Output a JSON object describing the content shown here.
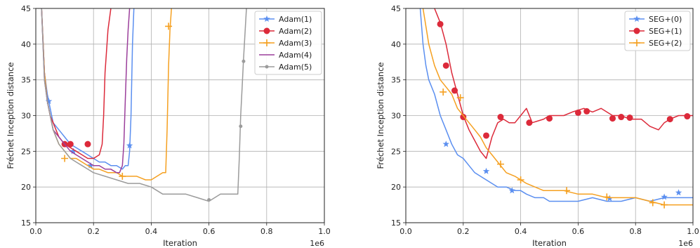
{
  "chart_data": [
    {
      "type": "line",
      "xlabel": "Iteration",
      "ylabel": "Fréchet Inception distance",
      "x_multiplier_label": "1e6",
      "xlim": [
        0.0,
        1.0
      ],
      "ylim": [
        15,
        45
      ],
      "xticks": [
        "0.0",
        "0.2",
        "0.4",
        "0.6",
        "0.8",
        "1.0"
      ],
      "yticks": [
        "15",
        "20",
        "25",
        "30",
        "35",
        "40",
        "45"
      ],
      "grid": true,
      "legend_position": "top-right",
      "series": [
        {
          "name": "Adam(1)",
          "color": "#5b8ff0",
          "marker": "star",
          "x": [
            0.02,
            0.03,
            0.04,
            0.05,
            0.06,
            0.08,
            0.1,
            0.12,
            0.14,
            0.16,
            0.18,
            0.2,
            0.22,
            0.24,
            0.26,
            0.28,
            0.3,
            0.31,
            0.32,
            0.325,
            0.33,
            0.335,
            0.34
          ],
          "y": [
            45,
            36,
            33,
            31,
            29,
            28,
            27,
            26,
            25.5,
            25,
            24.5,
            24,
            23.5,
            23.5,
            23,
            23,
            22.5,
            23,
            23,
            25,
            30,
            40,
            45
          ],
          "markers_x": [
            0.045,
            0.13,
            0.19,
            0.325
          ],
          "markers_y": [
            32,
            25,
            23,
            25.8
          ]
        },
        {
          "name": "Adam(2)",
          "color": "#dc2a3a",
          "marker": "circle",
          "x": [
            0.02,
            0.03,
            0.04,
            0.05,
            0.06,
            0.08,
            0.1,
            0.12,
            0.14,
            0.16,
            0.18,
            0.2,
            0.22,
            0.23,
            0.235,
            0.24,
            0.25,
            0.26
          ],
          "y": [
            45,
            36,
            32,
            30,
            29,
            27,
            26,
            25.5,
            25,
            24.5,
            24,
            24,
            24.5,
            26,
            30,
            36,
            42,
            45
          ],
          "markers_x": [
            0.1,
            0.12,
            0.18
          ],
          "markers_y": [
            26,
            26,
            26
          ]
        },
        {
          "name": "Adam(3)",
          "color": "#f5a020",
          "marker": "plus",
          "x": [
            0.02,
            0.03,
            0.04,
            0.05,
            0.06,
            0.08,
            0.1,
            0.12,
            0.14,
            0.16,
            0.18,
            0.2,
            0.22,
            0.25,
            0.28,
            0.3,
            0.32,
            0.35,
            0.38,
            0.4,
            0.42,
            0.44,
            0.45,
            0.455,
            0.46,
            0.465,
            0.47
          ],
          "y": [
            45,
            36,
            32,
            30,
            28,
            26,
            25,
            24,
            24,
            23.5,
            23,
            22.5,
            22.5,
            22,
            22,
            21.5,
            21.5,
            21.5,
            21,
            21,
            21.5,
            22,
            22,
            28,
            37,
            42,
            45
          ],
          "markers_x": [
            0.1,
            0.3,
            0.46
          ],
          "markers_y": [
            24,
            21.5,
            42.5
          ]
        },
        {
          "name": "Adam(4)",
          "color": "#9b3f9b",
          "marker": "none",
          "x": [
            0.02,
            0.03,
            0.04,
            0.05,
            0.06,
            0.08,
            0.1,
            0.12,
            0.14,
            0.16,
            0.18,
            0.2,
            0.22,
            0.24,
            0.26,
            0.28,
            0.29,
            0.3,
            0.305,
            0.31,
            0.315,
            0.32,
            0.325
          ],
          "y": [
            45,
            35,
            32,
            30,
            28,
            27,
            26,
            25,
            24.5,
            24,
            23.5,
            23,
            23,
            22.5,
            22.5,
            22,
            22,
            23,
            26,
            32,
            38,
            42,
            45
          ],
          "markers_x": [],
          "markers_y": []
        },
        {
          "name": "Adam(5)",
          "color": "#9b9b9b",
          "marker": "dot",
          "x": [
            0.02,
            0.03,
            0.04,
            0.05,
            0.06,
            0.08,
            0.1,
            0.12,
            0.14,
            0.16,
            0.18,
            0.2,
            0.24,
            0.28,
            0.32,
            0.36,
            0.4,
            0.44,
            0.48,
            0.52,
            0.56,
            0.6,
            0.64,
            0.68,
            0.7,
            0.705,
            0.71,
            0.715,
            0.72,
            0.73
          ],
          "y": [
            45,
            35,
            32,
            30,
            28,
            26,
            25,
            24,
            23.5,
            23,
            22.5,
            22,
            21.5,
            21,
            20.5,
            20.5,
            20,
            19,
            19,
            19,
            18.5,
            18,
            19,
            19,
            19,
            24,
            30,
            34,
            38,
            45
          ],
          "markers_x": [
            0.6,
            0.71,
            0.72
          ],
          "markers_y": [
            18.2,
            28.5,
            37.6
          ]
        }
      ]
    },
    {
      "type": "line",
      "xlabel": "Iteration",
      "ylabel": "Fréchet Inception distance",
      "x_multiplier_label": "1e6",
      "xlim": [
        0.0,
        1.0
      ],
      "ylim": [
        15,
        45
      ],
      "xticks": [
        "0.0",
        "0.2",
        "0.4",
        "0.6",
        "0.8",
        "1.0"
      ],
      "yticks": [
        "15",
        "20",
        "25",
        "30",
        "35",
        "40",
        "45"
      ],
      "grid": true,
      "legend_position": "top-right",
      "series": [
        {
          "name": "SEG+(0)",
          "color": "#5b8ff0",
          "marker": "star",
          "x": [
            0.05,
            0.06,
            0.07,
            0.08,
            0.1,
            0.12,
            0.14,
            0.16,
            0.18,
            0.2,
            0.22,
            0.24,
            0.26,
            0.28,
            0.3,
            0.32,
            0.35,
            0.38,
            0.4,
            0.42,
            0.45,
            0.48,
            0.5,
            0.55,
            0.6,
            0.65,
            0.7,
            0.75,
            0.8,
            0.85,
            0.9,
            0.95,
            1.0
          ],
          "y": [
            45,
            40,
            37,
            35,
            33,
            30,
            28,
            26,
            24.5,
            24,
            23,
            22,
            21.5,
            21,
            20.5,
            20,
            20,
            19.5,
            19.5,
            19,
            18.5,
            18.5,
            18,
            18,
            18,
            18.5,
            18,
            18,
            18.5,
            18,
            18.5,
            18.5,
            18.5
          ],
          "markers_x": [
            0.14,
            0.28,
            0.37,
            0.71,
            0.9,
            0.95
          ],
          "markers_y": [
            26,
            22.2,
            19.5,
            18.4,
            18.6,
            19.2
          ]
        },
        {
          "name": "SEG+(1)",
          "color": "#dc2a3a",
          "marker": "circle",
          "x": [
            0.1,
            0.12,
            0.14,
            0.16,
            0.18,
            0.2,
            0.22,
            0.24,
            0.26,
            0.28,
            0.3,
            0.32,
            0.34,
            0.36,
            0.38,
            0.4,
            0.42,
            0.44,
            0.48,
            0.5,
            0.55,
            0.58,
            0.62,
            0.65,
            0.68,
            0.7,
            0.72,
            0.75,
            0.78,
            0.8,
            0.82,
            0.85,
            0.88,
            0.9,
            0.92,
            0.95,
            0.98,
            1.0
          ],
          "y": [
            45,
            43,
            40,
            36,
            33,
            30,
            28,
            26.5,
            25,
            24,
            27,
            29,
            29.5,
            29,
            29,
            30,
            31,
            29,
            29.5,
            30,
            30,
            30.5,
            31,
            30.5,
            31,
            30.5,
            30,
            30,
            29.5,
            29.5,
            29.5,
            28.5,
            28,
            29,
            29.5,
            30,
            30,
            30
          ],
          "markers_x": [
            0.12,
            0.14,
            0.17,
            0.2,
            0.28,
            0.33,
            0.43,
            0.5,
            0.6,
            0.63,
            0.72,
            0.75,
            0.78,
            0.92,
            0.98
          ],
          "markers_y": [
            42.8,
            37,
            33.5,
            29.8,
            27.2,
            29.8,
            29,
            29.6,
            30.4,
            30.6,
            29.6,
            29.8,
            29.7,
            29.5,
            29.9
          ]
        },
        {
          "name": "SEG+(2)",
          "color": "#f5a020",
          "marker": "plus",
          "x": [
            0.06,
            0.08,
            0.1,
            0.12,
            0.14,
            0.16,
            0.18,
            0.2,
            0.22,
            0.24,
            0.26,
            0.28,
            0.3,
            0.32,
            0.35,
            0.38,
            0.4,
            0.42,
            0.45,
            0.48,
            0.5,
            0.55,
            0.6,
            0.65,
            0.7,
            0.75,
            0.8,
            0.85,
            0.9,
            0.95,
            1.0
          ],
          "y": [
            45,
            40,
            37,
            35,
            34,
            33,
            31,
            30,
            29,
            28,
            27,
            25.5,
            24.5,
            23.5,
            22,
            21.5,
            21,
            20.5,
            20,
            19.5,
            19.5,
            19.5,
            19,
            19,
            18.5,
            18.5,
            18.5,
            18,
            17.5,
            17.5,
            17.5
          ],
          "markers_x": [
            0.13,
            0.19,
            0.33,
            0.4,
            0.56,
            0.7,
            0.86,
            0.9
          ],
          "markers_y": [
            33.3,
            32.5,
            23.2,
            21,
            19.5,
            18.6,
            17.8,
            17.5
          ]
        }
      ]
    }
  ]
}
